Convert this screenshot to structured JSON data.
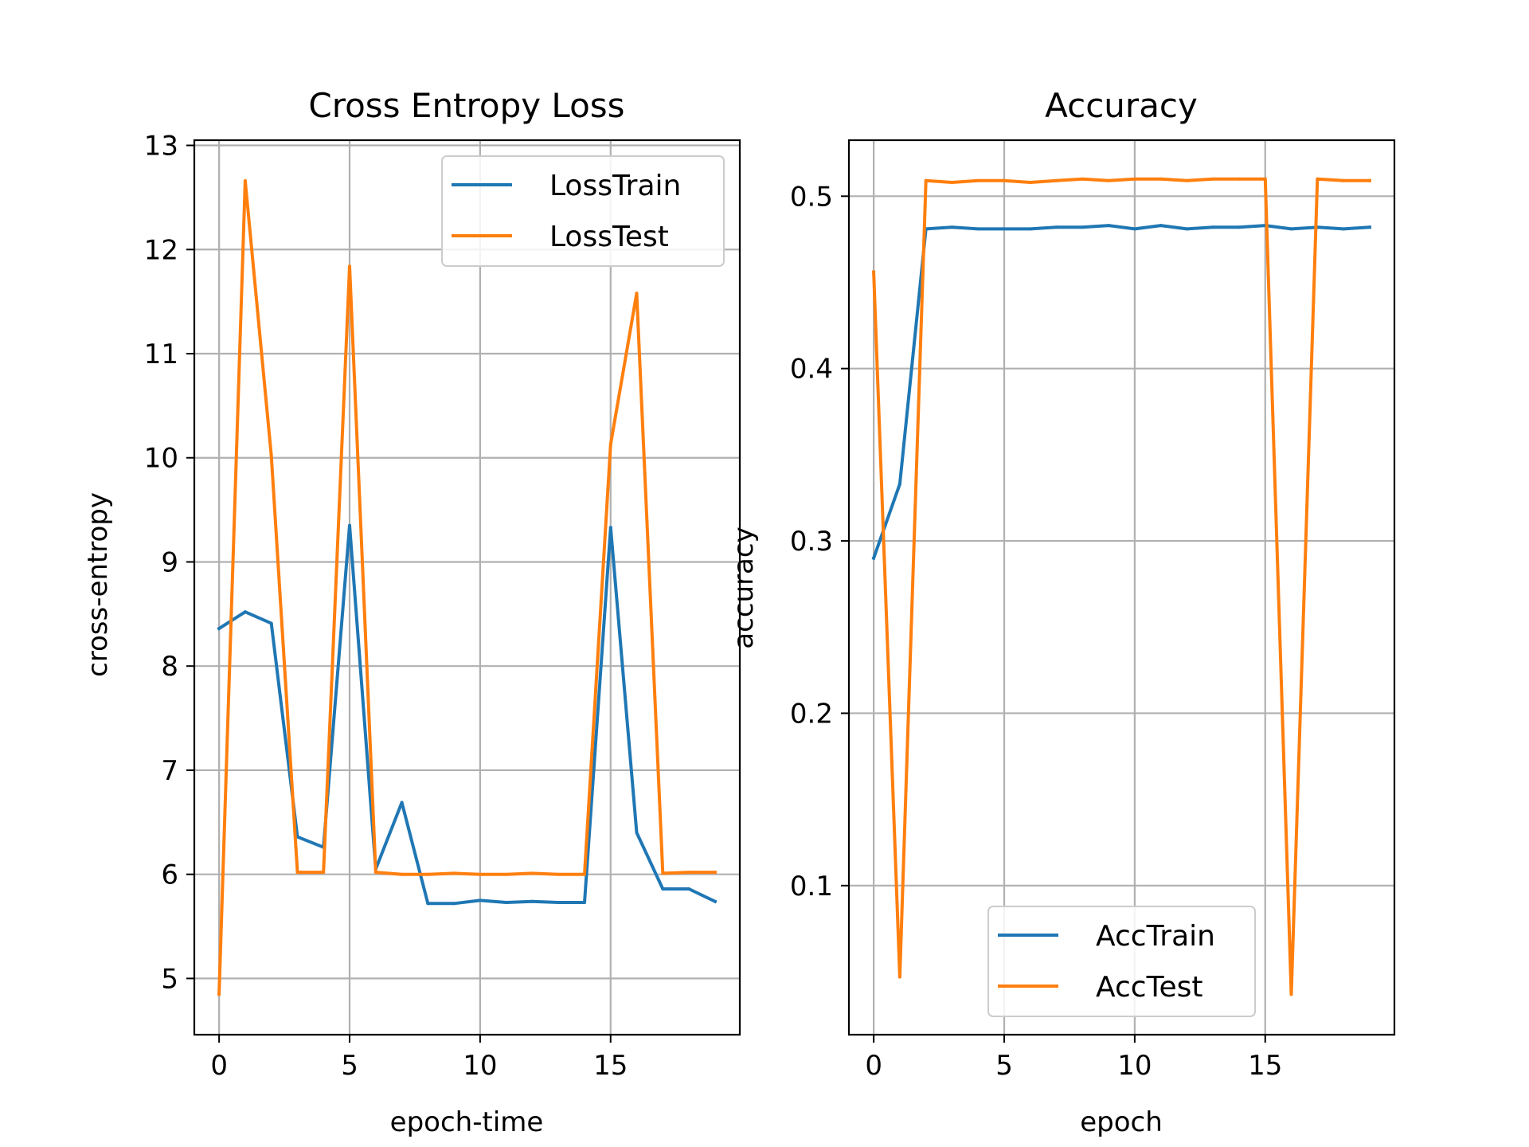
{
  "chart_data": [
    {
      "type": "line",
      "title": "Cross Entropy Loss",
      "xlabel": "epoch-time",
      "ylabel": "cross-entropy",
      "xlim": [
        -0.95,
        19.95
      ],
      "ylim": [
        4.46,
        13.05
      ],
      "xticks": [
        0,
        5,
        10,
        15
      ],
      "yticks": [
        5,
        6,
        7,
        8,
        9,
        10,
        11,
        12,
        13
      ],
      "grid": true,
      "legend": "upper right",
      "x": [
        0,
        1,
        2,
        3,
        4,
        5,
        6,
        7,
        8,
        9,
        10,
        11,
        12,
        13,
        14,
        15,
        16,
        17,
        18,
        19
      ],
      "series": [
        {
          "name": "LossTrain",
          "color": "#1f77b4",
          "values": [
            8.36,
            8.52,
            8.41,
            6.36,
            6.26,
            9.35,
            6.05,
            6.69,
            5.72,
            5.72,
            5.75,
            5.73,
            5.74,
            5.73,
            5.73,
            9.33,
            6.4,
            5.86,
            5.86,
            5.74
          ]
        },
        {
          "name": "LossTest",
          "color": "#ff7f0e",
          "values": [
            4.85,
            12.66,
            10.02,
            6.02,
            6.02,
            11.84,
            6.02,
            6.0,
            6.0,
            6.01,
            6.0,
            6.0,
            6.01,
            6.0,
            6.0,
            10.13,
            11.58,
            6.01,
            6.02,
            6.02
          ]
        }
      ]
    },
    {
      "type": "line",
      "title": "Accuracy",
      "xlabel": "epoch",
      "ylabel": "accuracy",
      "xlim": [
        -0.95,
        19.95
      ],
      "ylim": [
        0.0135,
        0.5325
      ],
      "xticks": [
        0,
        5,
        10,
        15
      ],
      "yticks": [
        0.1,
        0.2,
        0.3,
        0.4,
        0.5
      ],
      "ytick_labels": [
        "0.1",
        "0.2",
        "0.3",
        "0.4",
        "0.5"
      ],
      "grid": true,
      "legend": "lower right",
      "x": [
        0,
        1,
        2,
        3,
        4,
        5,
        6,
        7,
        8,
        9,
        10,
        11,
        12,
        13,
        14,
        15,
        16,
        17,
        18,
        19
      ],
      "series": [
        {
          "name": "AccTrain",
          "color": "#1f77b4",
          "values": [
            0.29,
            0.333,
            0.481,
            0.482,
            0.481,
            0.481,
            0.481,
            0.482,
            0.482,
            0.483,
            0.481,
            0.483,
            0.481,
            0.482,
            0.482,
            0.483,
            0.481,
            0.482,
            0.481,
            0.482
          ]
        },
        {
          "name": "AccTest",
          "color": "#ff7f0e",
          "values": [
            0.456,
            0.047,
            0.509,
            0.508,
            0.509,
            0.509,
            0.508,
            0.509,
            0.51,
            0.509,
            0.51,
            0.51,
            0.509,
            0.51,
            0.51,
            0.51,
            0.037,
            0.51,
            0.509,
            0.509
          ]
        }
      ]
    }
  ]
}
